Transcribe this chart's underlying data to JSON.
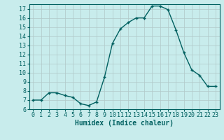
{
  "x": [
    0,
    1,
    2,
    3,
    4,
    5,
    6,
    7,
    8,
    9,
    10,
    11,
    12,
    13,
    14,
    15,
    16,
    17,
    18,
    19,
    20,
    21,
    22,
    23
  ],
  "y": [
    7.0,
    7.0,
    7.8,
    7.8,
    7.5,
    7.3,
    6.6,
    6.4,
    6.8,
    9.5,
    13.2,
    14.8,
    15.5,
    16.0,
    16.0,
    17.3,
    17.3,
    16.9,
    14.7,
    12.2,
    10.3,
    9.7,
    8.5,
    8.5
  ],
  "bg_color": "#c8ecec",
  "line_color": "#006060",
  "marker_color": "#006060",
  "grid_color": "#b0c8c8",
  "xlabel": "Humidex (Indice chaleur)",
  "ylim": [
    6,
    17.5
  ],
  "xlim": [
    -0.5,
    23.5
  ],
  "yticks": [
    6,
    7,
    8,
    9,
    10,
    11,
    12,
    13,
    14,
    15,
    16,
    17
  ],
  "xticks": [
    0,
    1,
    2,
    3,
    4,
    5,
    6,
    7,
    8,
    9,
    10,
    11,
    12,
    13,
    14,
    15,
    16,
    17,
    18,
    19,
    20,
    21,
    22,
    23
  ],
  "xtick_labels": [
    "0",
    "1",
    "2",
    "3",
    "4",
    "5",
    "6",
    "7",
    "8",
    "9",
    "10",
    "11",
    "12",
    "13",
    "14",
    "15",
    "16",
    "17",
    "18",
    "19",
    "20",
    "21",
    "22",
    "23"
  ],
  "font_size_label": 7,
  "font_size_tick": 6,
  "line_width": 1.0,
  "marker_size": 3.0
}
